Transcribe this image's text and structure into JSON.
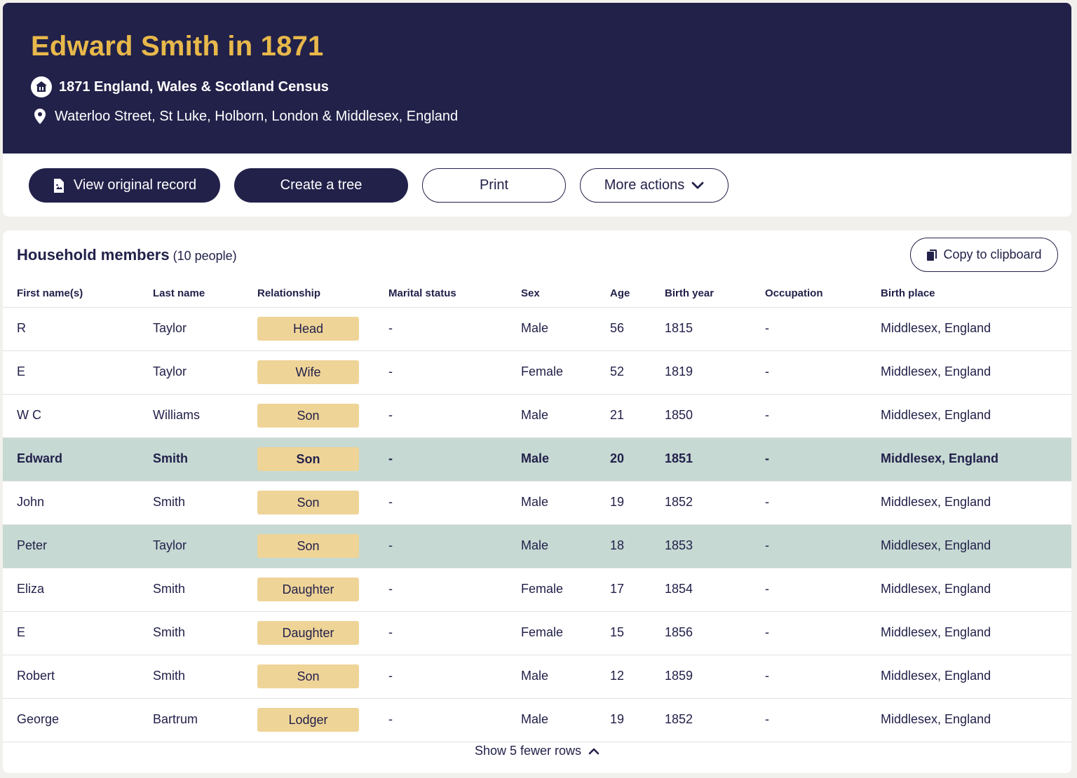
{
  "header": {
    "title": "Edward Smith in 1871",
    "collection": "1871 England, Wales & Scotland Census",
    "collection_icon": "census-building-icon",
    "location": "Waterloo Street, St Luke, Holborn, London & Middlesex, England",
    "location_icon": "map-pin-icon"
  },
  "actions": {
    "view_original": "View original record",
    "create_tree": "Create a tree",
    "print": "Print",
    "more_actions": "More actions"
  },
  "household": {
    "title": "Household members",
    "count": "(10 people)",
    "copy_label": "Copy to clipboard",
    "columns": [
      "First name(s)",
      "Last name",
      "Relationship",
      "Marital status",
      "Sex",
      "Age",
      "Birth year",
      "Occupation",
      "Birth place"
    ],
    "rows": [
      {
        "first": "R",
        "last": "Taylor",
        "relationship": "Head",
        "marital": "-",
        "sex": "Male",
        "age": "56",
        "birth_year": "1815",
        "occupation": "-",
        "birth_place": "Middlesex, England"
      },
      {
        "first": "E",
        "last": "Taylor",
        "relationship": "Wife",
        "marital": "-",
        "sex": "Female",
        "age": "52",
        "birth_year": "1819",
        "occupation": "-",
        "birth_place": "Middlesex, England"
      },
      {
        "first": "W C",
        "last": "Williams",
        "relationship": "Son",
        "marital": "-",
        "sex": "Male",
        "age": "21",
        "birth_year": "1850",
        "occupation": "-",
        "birth_place": "Middlesex, England"
      },
      {
        "first": "Edward",
        "last": "Smith",
        "relationship": "Son",
        "marital": "-",
        "sex": "Male",
        "age": "20",
        "birth_year": "1851",
        "occupation": "-",
        "birth_place": "Middlesex, England"
      },
      {
        "first": "John",
        "last": "Smith",
        "relationship": "Son",
        "marital": "-",
        "sex": "Male",
        "age": "19",
        "birth_year": "1852",
        "occupation": "-",
        "birth_place": "Middlesex, England"
      },
      {
        "first": "Peter",
        "last": "Taylor",
        "relationship": "Son",
        "marital": "-",
        "sex": "Male",
        "age": "18",
        "birth_year": "1853",
        "occupation": "-",
        "birth_place": "Middlesex, England"
      },
      {
        "first": "Eliza",
        "last": "Smith",
        "relationship": "Daughter",
        "marital": "-",
        "sex": "Female",
        "age": "17",
        "birth_year": "1854",
        "occupation": "-",
        "birth_place": "Middlesex, England"
      },
      {
        "first": "E",
        "last": "Smith",
        "relationship": "Daughter",
        "marital": "-",
        "sex": "Female",
        "age": "15",
        "birth_year": "1856",
        "occupation": "-",
        "birth_place": "Middlesex, England"
      },
      {
        "first": "Robert",
        "last": "Smith",
        "relationship": "Son",
        "marital": "-",
        "sex": "Male",
        "age": "12",
        "birth_year": "1859",
        "occupation": "-",
        "birth_place": "Middlesex, England"
      },
      {
        "first": "George",
        "last": "Bartrum",
        "relationship": "Lodger",
        "marital": "-",
        "sex": "Male",
        "age": "19",
        "birth_year": "1852",
        "occupation": "-",
        "birth_place": "Middlesex, England"
      }
    ],
    "show_fewer": "Show 5 fewer rows"
  },
  "colors": {
    "navy": "#22214a",
    "gold": "#e8b84a",
    "badge": "#efd498",
    "highlight_row": "#c6d9d3"
  }
}
